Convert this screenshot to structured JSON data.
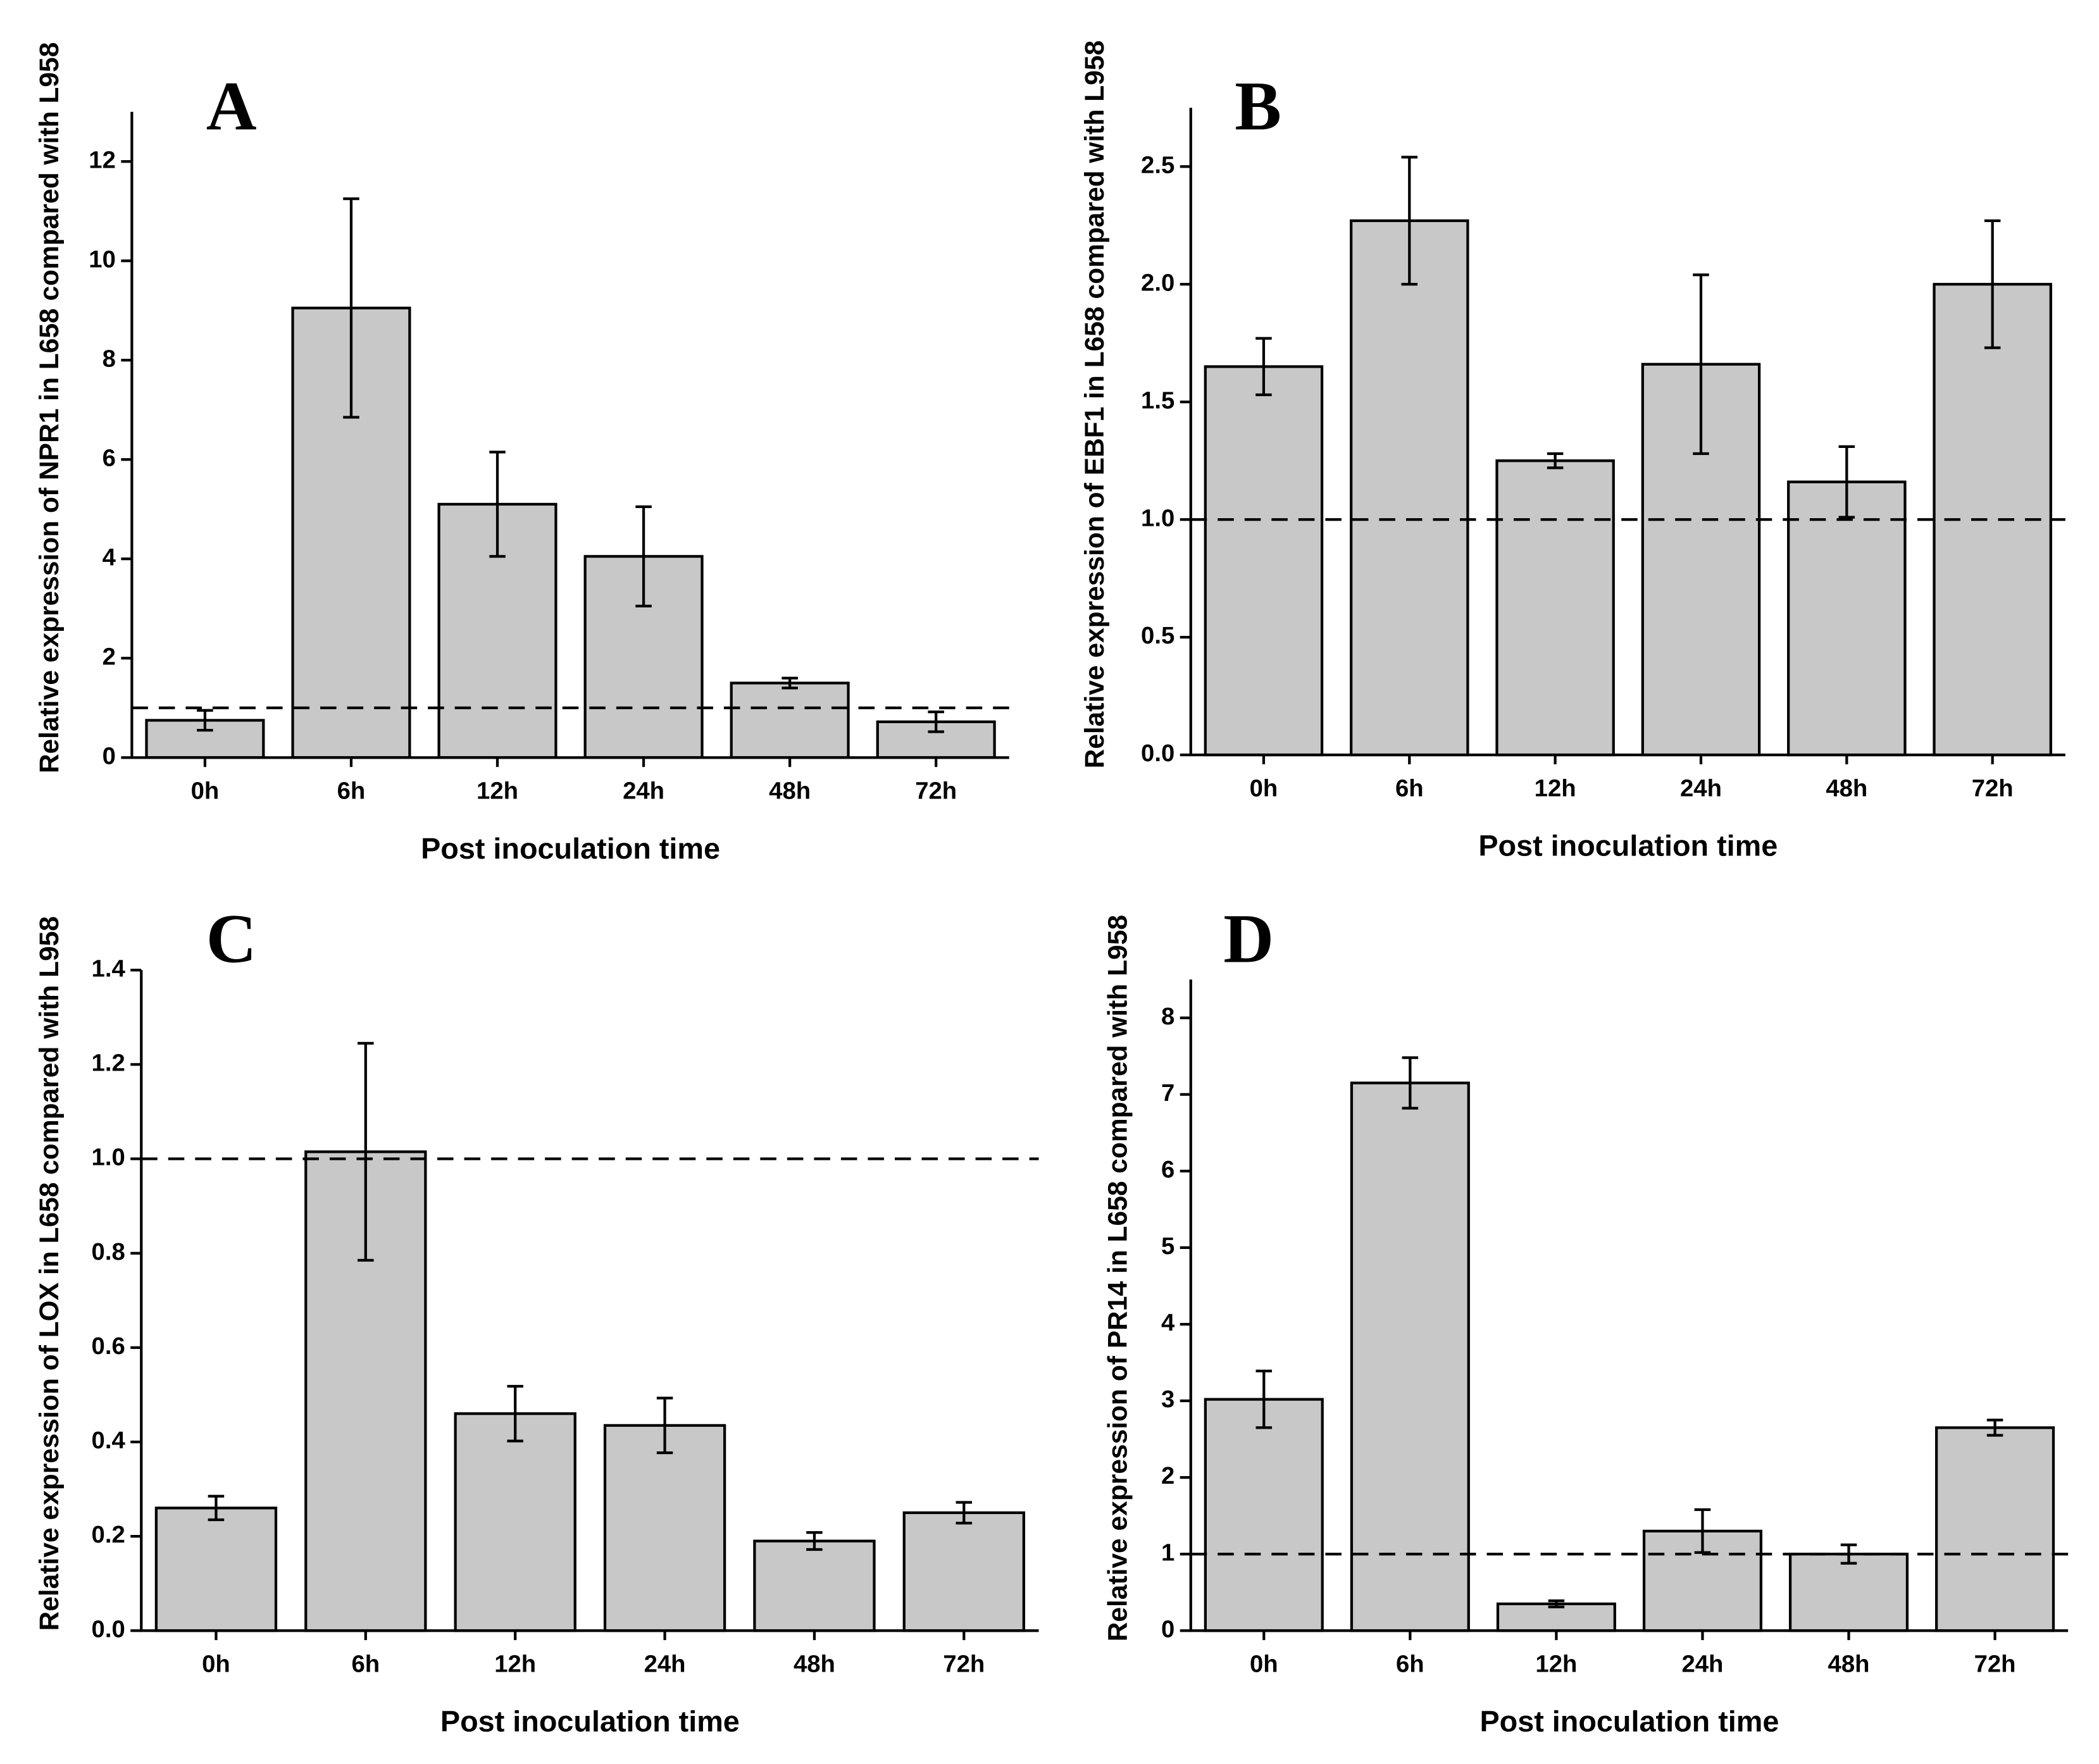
{
  "chart_data": [
    {
      "type": "bar",
      "panel_label": "A",
      "ylabel": "Relative expression of NPR1 in L658 compared with L958",
      "xlabel": "Post inoculation time",
      "categories": [
        "0h",
        "6h",
        "12h",
        "24h",
        "48h",
        "72h"
      ],
      "values": [
        0.75,
        9.05,
        5.1,
        4.05,
        1.5,
        0.72
      ],
      "errors": [
        0.2,
        2.2,
        1.05,
        1.0,
        0.1,
        0.2
      ],
      "color": "#c8c8c8",
      "ylim": [
        0,
        13
      ],
      "yticks": [
        0,
        2,
        4,
        6,
        8,
        10,
        12
      ],
      "reference_line": 1
    },
    {
      "type": "bar",
      "panel_label": "B",
      "ylabel": "Relative expression of EBF1 in L658 compared with L958",
      "xlabel": "Post inoculation time",
      "categories": [
        "0h",
        "6h",
        "12h",
        "24h",
        "48h",
        "72h"
      ],
      "values": [
        1.65,
        2.27,
        1.25,
        1.66,
        1.16,
        2.0
      ],
      "errors": [
        0.12,
        0.27,
        0.03,
        0.38,
        0.15,
        0.27
      ],
      "color": "#c8c8c8",
      "ylim": [
        0,
        2.75
      ],
      "yticks": [
        {
          "value": 0,
          "label": "0.0"
        },
        0.5,
        {
          "value": 1,
          "label": "1.0"
        },
        1.5,
        {
          "value": 2,
          "label": "2.0"
        },
        2.5
      ],
      "reference_line": 1
    },
    {
      "type": "bar",
      "panel_label": "C",
      "ylabel": "Relative expression of LOX in L658 compared with L958",
      "xlabel": "Post inoculation time",
      "categories": [
        "0h",
        "6h",
        "12h",
        "24h",
        "48h",
        "72h"
      ],
      "values": [
        0.26,
        1.015,
        0.46,
        0.435,
        0.19,
        0.25
      ],
      "errors": [
        0.025,
        0.23,
        0.058,
        0.058,
        0.018,
        0.022
      ],
      "color": "#c8c8c8",
      "ylim": [
        0,
        1.4
      ],
      "yticks": [
        {
          "value": 0,
          "label": "0.0"
        },
        0.2,
        0.4,
        0.6,
        0.8,
        {
          "value": 1,
          "label": "1.0"
        },
        1.2,
        1.4
      ],
      "reference_line": 1
    },
    {
      "type": "bar",
      "panel_label": "D",
      "ylabel": "Relative expression of PR14 in L658 compared with L958",
      "xlabel": "Post inoculation time",
      "categories": [
        "0h",
        "6h",
        "12h",
        "24h",
        "48h",
        "72h"
      ],
      "values": [
        3.02,
        7.15,
        0.35,
        1.3,
        1.0,
        2.65
      ],
      "errors": [
        0.37,
        0.33,
        0.04,
        0.28,
        0.12,
        0.1
      ],
      "color": "#c8c8c8",
      "ylim": [
        0,
        8.5
      ],
      "yticks": [
        0,
        1,
        2,
        3,
        4,
        5,
        6,
        7,
        8
      ],
      "reference_line": 1
    }
  ]
}
